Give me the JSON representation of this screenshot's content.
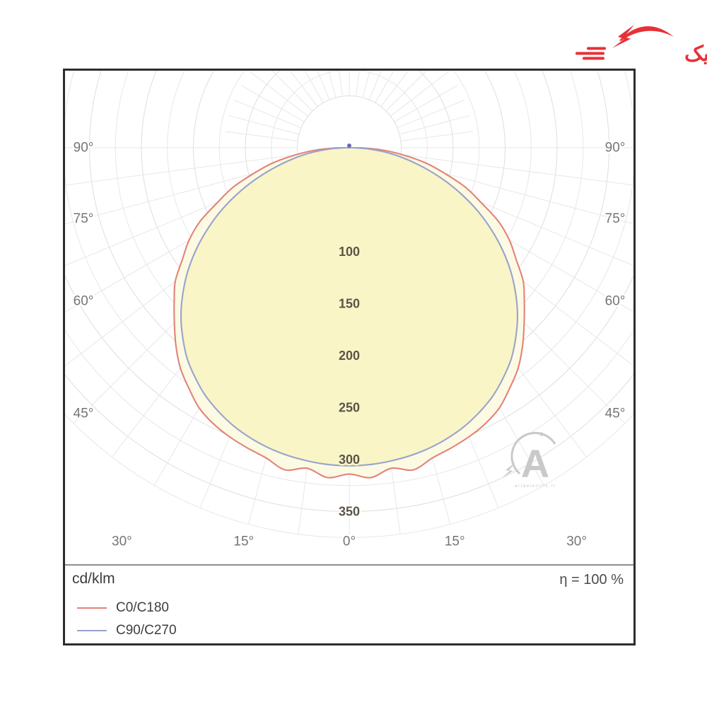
{
  "logo": {
    "brand_text": "آرتاالکتریک",
    "color": "#e63137"
  },
  "chart_data": {
    "type": "polar",
    "subtype": "photometric_intensity_distribution",
    "units": "cd/klm",
    "efficiency_text": "η = 100 %",
    "symmetry": "mirrored_about_vertical_0deg_axis",
    "radial_axis": {
      "min": 0,
      "max": 375,
      "minor_step": 25,
      "inner_blank_radius": 50,
      "labeled_ticks": [
        100,
        150,
        200,
        250,
        300,
        350
      ]
    },
    "angle_rays_step_deg": 7.5,
    "angle_labels_left": [
      {
        "text": "90°",
        "deg": 90
      },
      {
        "text": "75°",
        "deg": 75
      },
      {
        "text": "60°",
        "deg": 60
      },
      {
        "text": "45°",
        "deg": 45
      }
    ],
    "angle_labels_right": [
      {
        "text": "90°",
        "deg": 90
      },
      {
        "text": "75°",
        "deg": 75
      },
      {
        "text": "60°",
        "deg": 60
      },
      {
        "text": "45°",
        "deg": 45
      }
    ],
    "angle_labels_bottom": [
      {
        "text": "30°",
        "deg": -30
      },
      {
        "text": "15°",
        "deg": -15
      },
      {
        "text": "0°",
        "deg": 0
      },
      {
        "text": "15°",
        "deg": 15
      },
      {
        "text": "30°",
        "deg": 30
      }
    ],
    "series": [
      {
        "name": "C0/C180",
        "color": "#e2837a",
        "fill": "#fcfae2",
        "style": "wavy",
        "gamma_deg": [
          0,
          3.75,
          7.5,
          11.25,
          15,
          18.75,
          22.5,
          26.25,
          30,
          33.75,
          37.5,
          41.25,
          45,
          48.75,
          52.5,
          56.25,
          60,
          63.75,
          67.5,
          71.25,
          75,
          78.75,
          82.5,
          86.25,
          90
        ],
        "values_cd_klm": [
          314,
          318,
          311,
          316,
          309,
          305,
          301,
          296,
          289,
          278,
          267,
          253,
          238,
          224,
          211,
          193,
          178,
          160,
          137,
          118,
          95,
          75,
          52,
          31,
          11
        ]
      },
      {
        "name": "C90/C270",
        "color": "#99a3cc",
        "fill": "#f9f5c6",
        "style": "smooth",
        "gamma_deg": [
          0,
          3.75,
          7.5,
          11.25,
          15,
          18.75,
          22.5,
          26.25,
          30,
          33.75,
          37.5,
          41.25,
          45,
          48.75,
          52.5,
          56.25,
          60,
          63.75,
          67.5,
          71.25,
          75,
          78.75,
          82.5,
          86.25,
          90
        ],
        "values_cd_klm": [
          306,
          305.5,
          304,
          302,
          299,
          295,
          290,
          283.5,
          276,
          266.5,
          256,
          243,
          229,
          213,
          196,
          177.5,
          158,
          138,
          117,
          96,
          75,
          56,
          38,
          20,
          4
        ]
      }
    ],
    "center_marker_color": "#6f67ae",
    "grid_color_minor": "#e7e7e7",
    "grid_color_major": "#dedede",
    "angle_label_color": "#757575",
    "radial_label_color": "#5b5548"
  },
  "legend": {
    "units": "cd/klm",
    "efficiency": "η = 100 %",
    "items": [
      {
        "label": "C0/C180",
        "color": "#e2837a"
      },
      {
        "label": "C90/C270",
        "color": "#99a3cc"
      }
    ]
  },
  "watermark": {
    "letter": "A",
    "caption": "artaelectric.ir",
    "color": "#c9c9c9"
  }
}
